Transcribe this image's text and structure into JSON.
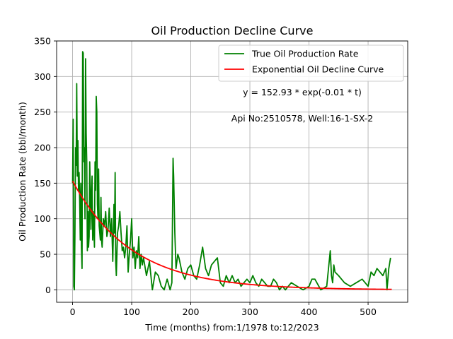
{
  "chart_data": {
    "type": "line",
    "title": "Oil Production Decline Curve",
    "xlabel": "Time (months) from:1/1978 to:12/2023",
    "ylabel": "Oil Production Rate (bbl/month)",
    "xlim": [
      -27,
      567
    ],
    "ylim": [
      -17.5,
      350
    ],
    "xticks": [
      0,
      100,
      200,
      300,
      400,
      500
    ],
    "yticks": [
      0,
      50,
      100,
      150,
      200,
      250,
      300,
      350
    ],
    "grid": true,
    "legend_position": "top-right",
    "annotations": [
      "y = 152.93 * exp(-0.01 * t)",
      "Api No:2510578, Well:16-1-SX-2"
    ],
    "series": [
      {
        "name": "True Oil Production Rate",
        "color": "#008000",
        "x": [
          0,
          1,
          2,
          3,
          4,
          5,
          6,
          7,
          8,
          9,
          10,
          11,
          12,
          13,
          14,
          15,
          16,
          17,
          18,
          19,
          20,
          21,
          22,
          23,
          24,
          25,
          26,
          27,
          28,
          29,
          30,
          31,
          32,
          33,
          34,
          35,
          36,
          37,
          38,
          39,
          40,
          41,
          42,
          43,
          44,
          45,
          46,
          47,
          48,
          49,
          50,
          52,
          54,
          56,
          58,
          60,
          62,
          64,
          66,
          68,
          70,
          71,
          72,
          73,
          74,
          76,
          78,
          80,
          82,
          84,
          86,
          88,
          90,
          92,
          94,
          96,
          98,
          100,
          102,
          104,
          106,
          108,
          110,
          112,
          114,
          116,
          118,
          120,
          125,
          130,
          135,
          140,
          145,
          150,
          155,
          160,
          165,
          168,
          170,
          171,
          172,
          173,
          175,
          178,
          180,
          185,
          190,
          195,
          200,
          205,
          210,
          215,
          220,
          225,
          230,
          235,
          240,
          245,
          250,
          255,
          260,
          265,
          270,
          275,
          280,
          285,
          290,
          295,
          300,
          305,
          310,
          315,
          320,
          325,
          330,
          335,
          340,
          345,
          350,
          355,
          360,
          370,
          380,
          390,
          400,
          405,
          410,
          420,
          430,
          436,
          438,
          440,
          442,
          444,
          450,
          460,
          470,
          480,
          490,
          500,
          505,
          510,
          515,
          520,
          525,
          530,
          532,
          535,
          538
        ],
        "y": [
          150,
          240,
          5,
          0,
          80,
          200,
          175,
          290,
          160,
          210,
          140,
          165,
          125,
          70,
          150,
          60,
          30,
          335,
          333,
          180,
          200,
          100,
          325,
          220,
          180,
          55,
          110,
          60,
          75,
          180,
          140,
          85,
          135,
          160,
          70,
          110,
          85,
          60,
          180,
          140,
          272,
          250,
          120,
          100,
          170,
          90,
          80,
          70,
          130,
          70,
          60,
          100,
          90,
          110,
          75,
          85,
          115,
          75,
          100,
          40,
          120,
          80,
          165,
          40,
          20,
          80,
          90,
          110,
          80,
          55,
          60,
          45,
          60,
          90,
          25,
          50,
          70,
          100,
          45,
          60,
          30,
          55,
          45,
          75,
          30,
          50,
          35,
          45,
          20,
          40,
          0,
          25,
          20,
          5,
          0,
          15,
          0,
          10,
          185,
          160,
          120,
          80,
          30,
          50,
          45,
          25,
          15,
          30,
          35,
          20,
          15,
          35,
          60,
          30,
          20,
          35,
          40,
          45,
          10,
          5,
          20,
          10,
          20,
          10,
          15,
          5,
          10,
          15,
          10,
          20,
          10,
          5,
          15,
          10,
          5,
          5,
          15,
          10,
          0,
          5,
          0,
          10,
          5,
          0,
          5,
          15,
          15,
          0,
          5,
          55,
          20,
          10,
          35,
          25,
          20,
          10,
          5,
          10,
          15,
          5,
          25,
          20,
          30,
          25,
          20,
          30,
          0,
          30,
          45
        ]
      },
      {
        "name": "Exponential Oil Decline Curve",
        "color": "#ff0000",
        "equation": {
          "a": 152.93,
          "b": 0.01
        },
        "x_range": [
          0,
          540
        ]
      }
    ]
  }
}
